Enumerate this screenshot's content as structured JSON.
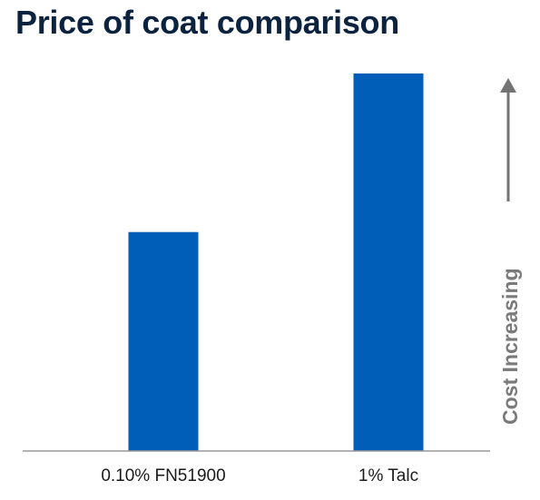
{
  "title": "Price of coat comparison",
  "chart_data": {
    "type": "bar",
    "title": "Price of coat comparison",
    "categories": [
      "0.10% FN51900",
      "1% Talc"
    ],
    "values": [
      58,
      100
    ],
    "ylim": [
      0,
      100
    ],
    "ylabel": "Cost Increasing",
    "xlabel": "",
    "grid": false,
    "legend": "none",
    "colors": {
      "bar": "#005eb8",
      "axis": "#999999",
      "arrow": "#737373",
      "title": "#0c2340"
    }
  }
}
